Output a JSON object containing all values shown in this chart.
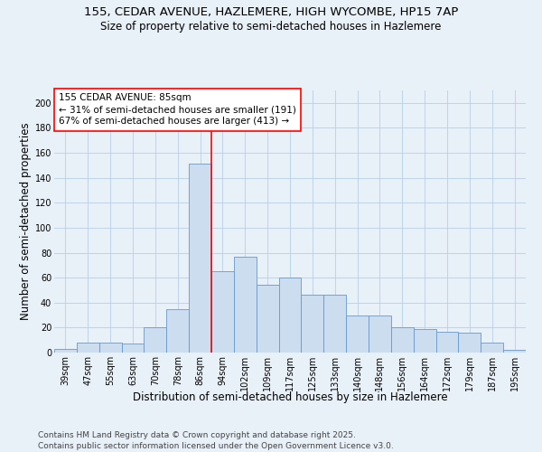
{
  "title_line1": "155, CEDAR AVENUE, HAZLEMERE, HIGH WYCOMBE, HP15 7AP",
  "title_line2": "Size of property relative to semi-detached houses in Hazlemere",
  "xlabel": "Distribution of semi-detached houses by size in Hazlemere",
  "ylabel": "Number of semi-detached properties",
  "footer_line1": "Contains HM Land Registry data © Crown copyright and database right 2025.",
  "footer_line2": "Contains public sector information licensed under the Open Government Licence v3.0.",
  "categories": [
    "39sqm",
    "47sqm",
    "55sqm",
    "63sqm",
    "70sqm",
    "78sqm",
    "86sqm",
    "94sqm",
    "102sqm",
    "109sqm",
    "117sqm",
    "125sqm",
    "133sqm",
    "140sqm",
    "148sqm",
    "156sqm",
    "164sqm",
    "172sqm",
    "179sqm",
    "187sqm",
    "195sqm"
  ],
  "values": [
    3,
    8,
    8,
    7,
    20,
    35,
    151,
    65,
    77,
    54,
    60,
    46,
    46,
    30,
    30,
    20,
    19,
    17,
    16,
    8,
    2
  ],
  "bar_color": "#ccddf0",
  "bar_edge_color": "#6699cc",
  "grid_color": "#b8cfe8",
  "background_color": "#e8f0f8",
  "annotation_line1": "155 CEDAR AVENUE: 85sqm",
  "annotation_line2": "← 31% of semi-detached houses are smaller (191)",
  "annotation_line3": "67% of semi-detached houses are larger (413) →",
  "property_line_bar_index": 6,
  "ylim": [
    0,
    210
  ],
  "yticks": [
    0,
    20,
    40,
    60,
    80,
    100,
    120,
    140,
    160,
    180,
    200
  ],
  "title_fontsize": 9.5,
  "subtitle_fontsize": 8.5,
  "axis_label_fontsize": 8.5,
  "tick_fontsize": 7,
  "annotation_fontsize": 7.5,
  "footer_fontsize": 6.5
}
